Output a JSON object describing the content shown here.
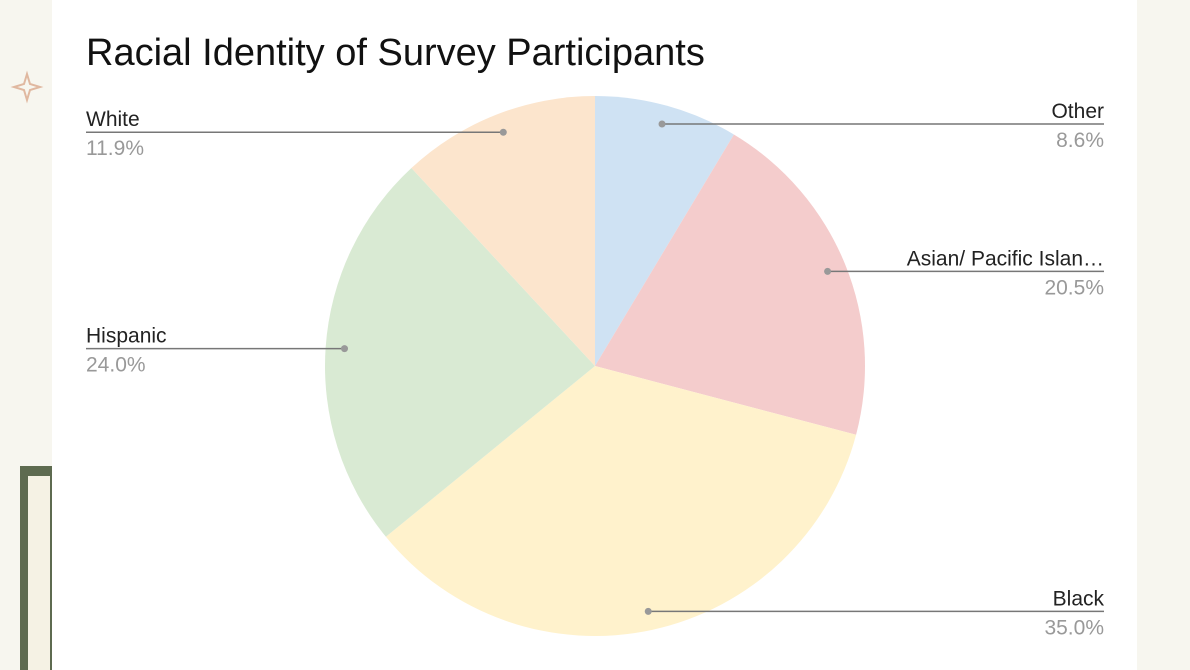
{
  "chart_data": {
    "type": "pie",
    "title": "Racial Identity of Survey Participants",
    "categories": [
      "Other",
      "Asian/ Pacific Islan…",
      "Black",
      "Hispanic",
      "White"
    ],
    "values": [
      8.6,
      20.5,
      35.0,
      24.0,
      11.9
    ],
    "value_labels": [
      "8.6%",
      "20.5%",
      "35.0%",
      "24.0%",
      "11.9%"
    ],
    "colors": [
      "#cfe2f3",
      "#f4cccc",
      "#fff2cc",
      "#d9ead3",
      "#fce5cd"
    ]
  }
}
